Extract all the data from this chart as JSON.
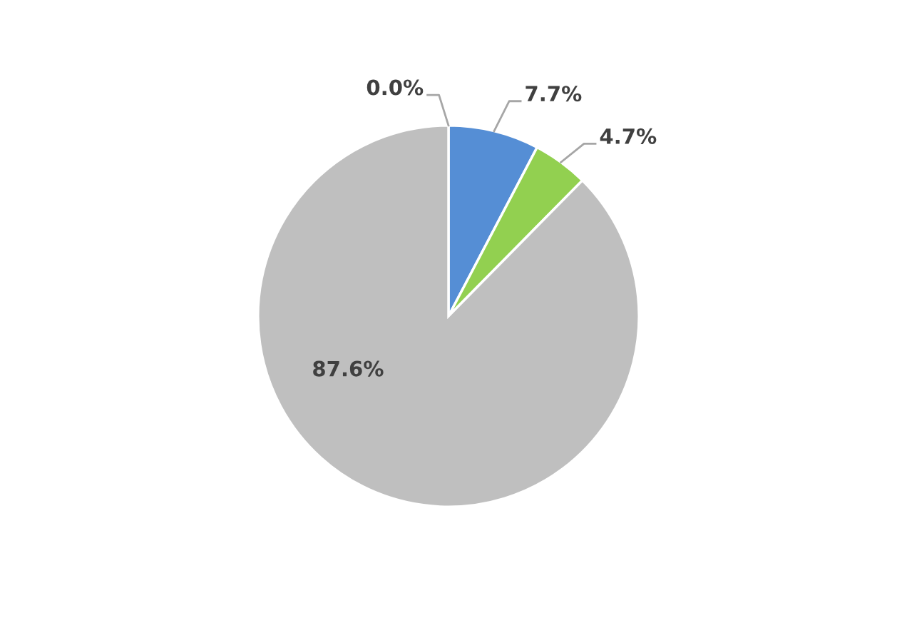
{
  "chart_data": {
    "type": "pie",
    "categories": [
      null,
      null,
      null,
      null
    ],
    "values": [
      0.0,
      7.7,
      4.7,
      87.6
    ],
    "colors": [
      "#ed7d31",
      "#558ed5",
      "#92d050",
      "#bfbfbf"
    ],
    "value_labels": [
      "0.0%",
      "7.7%",
      "4.7%",
      "87.6%"
    ]
  }
}
